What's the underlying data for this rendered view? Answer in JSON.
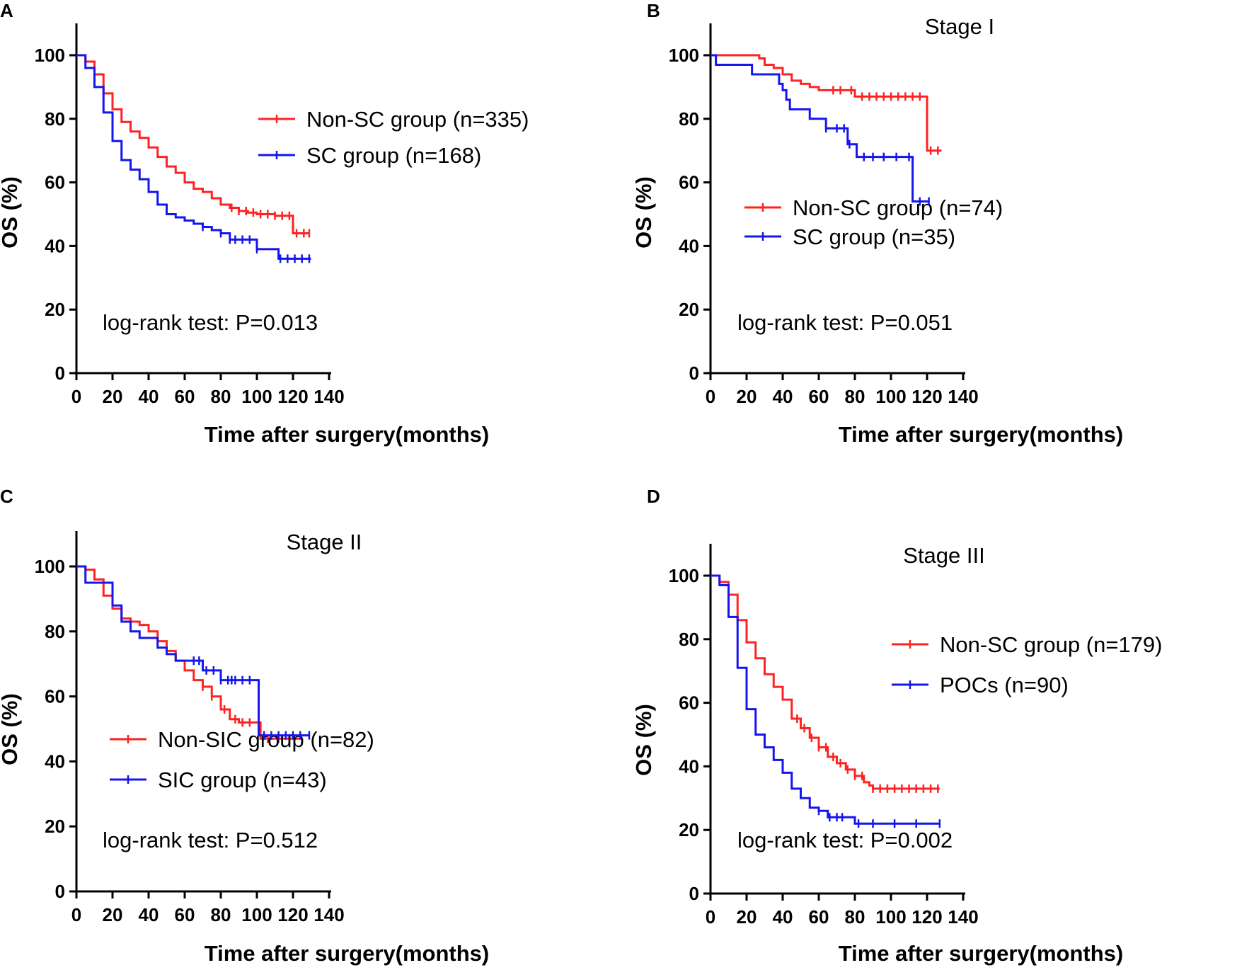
{
  "colors": {
    "red": "#ff2222",
    "blue": "#1515ee",
    "axis": "#000000"
  },
  "chart_data": [
    {
      "type": "line",
      "panel": "A",
      "title": "",
      "xlabel": "Time after surgery(months)",
      "ylabel": "OS (%)",
      "xlim": [
        0,
        140
      ],
      "ylim": [
        0,
        110
      ],
      "xticks": [
        0,
        20,
        40,
        60,
        80,
        100,
        120,
        140
      ],
      "yticks": [
        0,
        20,
        40,
        60,
        80,
        100
      ],
      "legend": [
        "Non-SC group  (n=335)",
        "SC group (n=168)"
      ],
      "annotation": "log-rank test: P=0.013",
      "series": [
        {
          "name": "Non-SC group (n=335)",
          "color": "red",
          "x": [
            0,
            5,
            10,
            15,
            20,
            25,
            30,
            35,
            40,
            45,
            50,
            55,
            60,
            65,
            70,
            75,
            80,
            85,
            90,
            95,
            100,
            105,
            110,
            115,
            119.5,
            120,
            129
          ],
          "y": [
            100,
            98,
            94,
            88,
            83,
            79,
            76,
            74,
            71,
            68,
            65,
            63,
            60,
            58,
            57,
            55,
            53,
            52,
            51,
            50.5,
            50,
            50,
            49.5,
            49.5,
            49.5,
            44,
            44
          ],
          "censor_x": [
            86,
            90,
            94,
            98,
            102,
            106,
            110,
            114,
            118,
            122,
            126,
            129
          ]
        },
        {
          "name": "SC group (n=168)",
          "color": "blue",
          "x": [
            0,
            5,
            10,
            15,
            20,
            25,
            30,
            35,
            40,
            45,
            50,
            55,
            60,
            65,
            70,
            75,
            80,
            85,
            90,
            95,
            100,
            105,
            110,
            112,
            120,
            130
          ],
          "y": [
            100,
            96,
            90,
            82,
            73,
            67,
            64,
            61,
            57,
            53,
            50,
            49,
            48,
            47,
            46,
            45,
            44,
            42,
            42,
            42,
            39,
            39,
            39,
            36,
            36,
            36
          ],
          "censor_x": [
            70,
            80,
            85,
            88,
            92,
            96,
            100,
            113,
            117,
            121,
            125,
            129
          ]
        }
      ]
    },
    {
      "type": "line",
      "panel": "B",
      "title": "Stage I",
      "xlabel": "Time after surgery(months)",
      "ylabel": "OS (%)",
      "xlim": [
        0,
        140
      ],
      "ylim": [
        0,
        110
      ],
      "xticks": [
        0,
        20,
        40,
        60,
        80,
        100,
        120,
        140
      ],
      "yticks": [
        0,
        20,
        40,
        60,
        80,
        100
      ],
      "legend": [
        "Non-SC group  (n=74)",
        "SC group (n=35)"
      ],
      "annotation": "log-rank test: P=0.051",
      "series": [
        {
          "name": "Non-SC group (n=74)",
          "color": "red",
          "x": [
            0,
            25,
            27,
            30,
            35,
            40,
            45,
            50,
            55,
            60,
            65,
            70,
            75,
            80,
            85,
            90,
            100,
            110,
            119,
            120,
            128
          ],
          "y": [
            100,
            100,
            99,
            97,
            96,
            94,
            92,
            91,
            90,
            89,
            89,
            89,
            89,
            87,
            87,
            87,
            87,
            87,
            87,
            70,
            70
          ],
          "censor_x": [
            68,
            72,
            78,
            84,
            88,
            92,
            96,
            100,
            104,
            108,
            112,
            116,
            122,
            126
          ]
        },
        {
          "name": "SC group (n=35)",
          "color": "blue",
          "x": [
            0,
            3,
            23,
            38,
            40,
            42,
            44,
            55,
            64,
            76,
            81,
            90,
            100,
            111,
            112,
            121
          ],
          "y": [
            100,
            97,
            94,
            91,
            89,
            86,
            83,
            80,
            77,
            72,
            68,
            68,
            68,
            68,
            54,
            54
          ],
          "censor_x": [
            64,
            70,
            74,
            77,
            85,
            90,
            96,
            103,
            110,
            116,
            121
          ]
        }
      ]
    },
    {
      "type": "line",
      "panel": "C",
      "title": "Stage II",
      "xlabel": "Time after surgery(months)",
      "ylabel": "OS (%)",
      "xlim": [
        0,
        140
      ],
      "ylim": [
        0,
        110
      ],
      "xticks": [
        0,
        20,
        40,
        60,
        80,
        100,
        120,
        140
      ],
      "yticks": [
        0,
        20,
        40,
        60,
        80,
        100
      ],
      "legend": [
        "Non-SIC group  (n=82)",
        "SIC group (n=43)"
      ],
      "annotation": "log-rank test: P=0.512",
      "series": [
        {
          "name": "Non-SIC group (n=82)",
          "color": "red",
          "x": [
            0,
            5,
            10,
            15,
            20,
            25,
            30,
            35,
            40,
            45,
            50,
            55,
            60,
            65,
            70,
            75,
            80,
            85,
            90,
            95,
            100,
            102,
            110,
            120,
            124
          ],
          "y": [
            100,
            99,
            96,
            91,
            87,
            84,
            83,
            82,
            80,
            77,
            74,
            71,
            68,
            65,
            63,
            60,
            56,
            53,
            52,
            52,
            52,
            47,
            47,
            47,
            47
          ],
          "censor_x": [
            70,
            75,
            82,
            88,
            92,
            96,
            106,
            112,
            118
          ]
        },
        {
          "name": "SIC group (n=43)",
          "color": "blue",
          "x": [
            0,
            5,
            10,
            15,
            20,
            25,
            30,
            35,
            40,
            45,
            50,
            55,
            60,
            65,
            70,
            75,
            80,
            85,
            90,
            95,
            100,
            101,
            110,
            120,
            129
          ],
          "y": [
            100,
            95,
            95,
            95,
            88,
            83,
            80,
            78,
            78,
            75,
            73,
            71,
            71,
            71,
            68,
            68,
            65,
            65,
            65,
            65,
            65,
            48,
            48,
            48,
            48
          ],
          "censor_x": [
            65,
            68,
            72,
            76,
            80,
            84,
            86,
            88,
            92,
            96,
            104,
            108,
            112,
            116,
            120,
            124,
            129
          ]
        }
      ]
    },
    {
      "type": "line",
      "panel": "D",
      "title": "Stage III",
      "xlabel": "Time after surgery(months)",
      "ylabel": "OS (%)",
      "xlim": [
        0,
        140
      ],
      "ylim": [
        0,
        110
      ],
      "xticks": [
        0,
        20,
        40,
        60,
        80,
        100,
        120,
        140
      ],
      "yticks": [
        0,
        20,
        40,
        60,
        80,
        100
      ],
      "legend": [
        "Non-SC group (n=179)",
        "POCs (n=90)"
      ],
      "annotation": "log-rank test: P=0.002",
      "series": [
        {
          "name": "Non-SC group (n=179)",
          "color": "red",
          "x": [
            0,
            5,
            10,
            15,
            20,
            25,
            30,
            35,
            40,
            45,
            50,
            55,
            60,
            65,
            70,
            75,
            80,
            85,
            88,
            90,
            100,
            110,
            120,
            127
          ],
          "y": [
            100,
            98,
            94,
            86,
            79,
            74,
            69,
            65,
            61,
            55,
            52,
            49,
            46,
            43,
            41,
            39,
            37,
            35,
            34,
            33,
            33,
            33,
            33,
            33
          ],
          "censor_x": [
            48,
            52,
            56,
            60,
            64,
            68,
            72,
            76,
            80,
            84,
            90,
            94,
            98,
            102,
            106,
            110,
            114,
            118,
            122,
            126
          ]
        },
        {
          "name": "POCs (n=90)",
          "color": "blue",
          "x": [
            0,
            5,
            10,
            15,
            20,
            25,
            30,
            35,
            40,
            45,
            50,
            55,
            60,
            65,
            70,
            75,
            80,
            90,
            100,
            110,
            120,
            127
          ],
          "y": [
            100,
            97,
            87,
            71,
            58,
            50,
            46,
            42,
            38,
            33,
            30,
            27,
            26,
            24,
            24,
            24,
            22,
            22,
            22,
            22,
            22,
            22
          ],
          "censor_x": [
            60,
            66,
            70,
            73,
            82,
            90,
            102,
            114,
            127
          ]
        }
      ]
    }
  ]
}
